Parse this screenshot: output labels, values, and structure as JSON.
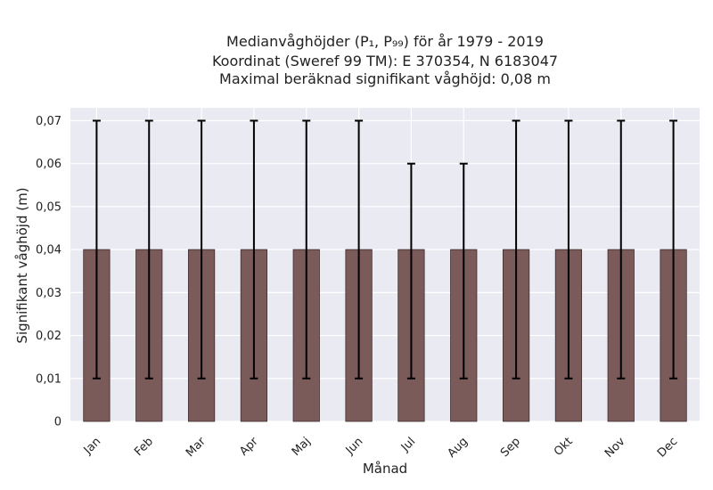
{
  "chart_data": {
    "type": "bar",
    "title_lines": [
      "Medianvåghöjder (P₁, P₉₉) för år 1979 - 2019",
      "Koordinat (Sweref 99 TM): E 370354, N 6183047",
      "Maximal beräknad signifikant våghöjd: 0,08 m"
    ],
    "xlabel": "Månad",
    "ylabel": "Signifikant våghöjd (m)",
    "categories": [
      "Jan",
      "Feb",
      "Mar",
      "Apr",
      "Maj",
      "Jun",
      "Jul",
      "Aug",
      "Sep",
      "Okt",
      "Nov",
      "Dec"
    ],
    "values": [
      0.04,
      0.04,
      0.04,
      0.04,
      0.04,
      0.04,
      0.04,
      0.04,
      0.04,
      0.04,
      0.04,
      0.04
    ],
    "p1": [
      0.01,
      0.01,
      0.01,
      0.01,
      0.01,
      0.01,
      0.01,
      0.01,
      0.01,
      0.01,
      0.01,
      0.01
    ],
    "p99": [
      0.07,
      0.07,
      0.07,
      0.07,
      0.07,
      0.07,
      0.06,
      0.06,
      0.07,
      0.07,
      0.07,
      0.07
    ],
    "ylim": [
      0,
      0.073
    ],
    "yticks": [
      0,
      0.01,
      0.02,
      0.03,
      0.04,
      0.05,
      0.06,
      0.07
    ],
    "ytick_labels": [
      "0",
      "0,01",
      "0,02",
      "0,03",
      "0,04",
      "0,05",
      "0,06",
      "0,07"
    ],
    "grid": true,
    "colors": {
      "bar": "#7b5a5a",
      "bar_edge": "#3e2c2c",
      "error": "#000000",
      "plot_bg": "#eaeaf2",
      "grid": "#ffffff"
    }
  }
}
